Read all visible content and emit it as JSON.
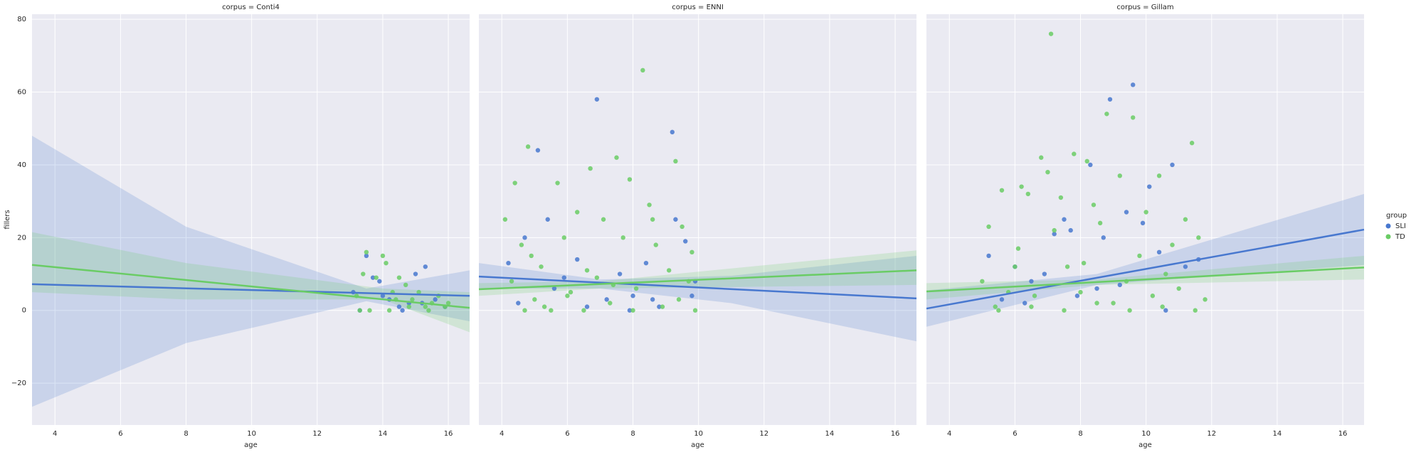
{
  "chart_data": [
    {
      "type": "scatter",
      "title": "corpus = Conti4",
      "xlabel": "age",
      "ylabel": "fillers",
      "xlim": [
        3.3,
        16.65
      ],
      "ylim": [
        -31.5,
        81.4
      ],
      "xticks": [
        4,
        6,
        8,
        10,
        12,
        14,
        16
      ],
      "yticks": [
        {
          "value": -20,
          "label": "−20"
        },
        0,
        20,
        40,
        60,
        80
      ],
      "grid": true,
      "series": [
        {
          "color": "#4878cf",
          "x": [
            13.1,
            13.5,
            13.7,
            13.9,
            14.2,
            14.5,
            14.8,
            15.0,
            15.3,
            15.6,
            13.3,
            14.0,
            14.6,
            15.2,
            15.9
          ],
          "y": [
            5,
            15,
            9,
            8,
            3,
            1,
            2,
            10,
            12,
            3,
            0,
            4,
            0,
            2,
            1
          ],
          "fit": {
            "x": [
              3.3,
              16.65
            ],
            "y": [
              7.2,
              4.0
            ]
          },
          "ci": {
            "x": [
              3.3,
              8,
              13.5,
              16.65
            ],
            "lower": [
              -26.5,
              -9,
              2.5,
              -3
            ],
            "upper": [
              48,
              23,
              6,
              11
            ]
          }
        },
        {
          "color": "#6acc65",
          "x": [
            13.2,
            13.4,
            13.5,
            13.8,
            14.0,
            14.1,
            14.3,
            14.5,
            14.7,
            14.9,
            15.1,
            15.3,
            15.5,
            15.7,
            15.9,
            13.6,
            14.2,
            14.8,
            15.4,
            16.0,
            13.3,
            14.4
          ],
          "y": [
            4,
            10,
            16,
            9,
            15,
            13,
            5,
            9,
            7,
            3,
            5,
            1,
            2,
            4,
            1,
            0,
            0,
            1,
            0,
            2,
            0,
            3
          ],
          "fit": {
            "x": [
              3.3,
              16.65
            ],
            "y": [
              12.5,
              0.7
            ]
          },
          "ci": {
            "x": [
              3.3,
              8,
              14,
              16.65
            ],
            "lower": [
              5,
              3,
              3,
              -6
            ],
            "upper": [
              21.5,
              13,
              6,
              5
            ]
          }
        }
      ]
    },
    {
      "type": "scatter",
      "title": "corpus = ENNI",
      "xlabel": "age",
      "xlim": [
        3.3,
        16.65
      ],
      "ylim": [
        -31.5,
        81.4
      ],
      "xticks": [
        4,
        6,
        8,
        10,
        12,
        14,
        16
      ],
      "yticks": [
        -20,
        0,
        20,
        40,
        60,
        80
      ],
      "grid": true,
      "series": [
        {
          "color": "#4878cf",
          "x": [
            4.2,
            4.7,
            5.1,
            5.4,
            5.9,
            6.3,
            6.6,
            6.9,
            7.2,
            7.6,
            8.0,
            8.4,
            8.8,
            9.2,
            9.3,
            9.6,
            9.8,
            4.5,
            5.6,
            7.9,
            8.6,
            9.9
          ],
          "y": [
            13,
            20,
            44,
            25,
            9,
            14,
            1,
            58,
            3,
            10,
            4,
            13,
            1,
            49,
            25,
            19,
            4,
            2,
            6,
            0,
            3,
            8
          ],
          "fit": {
            "x": [
              3.3,
              16.65
            ],
            "y": [
              9.3,
              3.3
            ]
          },
          "ci": {
            "x": [
              3.3,
              7,
              11,
              16.65
            ],
            "lower": [
              6,
              6,
              2,
              -8.5
            ],
            "upper": [
              13,
              8.5,
              9.5,
              15
            ]
          }
        },
        {
          "color": "#6acc65",
          "x": [
            4.1,
            4.3,
            4.4,
            4.6,
            4.8,
            5.0,
            5.2,
            5.5,
            5.7,
            5.9,
            6.1,
            6.3,
            6.5,
            6.7,
            6.9,
            7.1,
            7.3,
            7.5,
            7.7,
            7.9,
            8.1,
            8.3,
            8.5,
            8.7,
            8.9,
            9.1,
            9.3,
            9.5,
            9.7,
            9.9,
            4.9,
            5.3,
            6.0,
            6.6,
            7.4,
            8.0,
            8.6,
            9.4,
            9.8,
            4.7
          ],
          "y": [
            25,
            8,
            35,
            18,
            45,
            3,
            12,
            0,
            35,
            20,
            5,
            27,
            0,
            39,
            9,
            25,
            2,
            42,
            20,
            36,
            6,
            66,
            29,
            18,
            1,
            11,
            41,
            23,
            8,
            0,
            15,
            1,
            4,
            11,
            7,
            0,
            25,
            3,
            16,
            0
          ],
          "fit": {
            "x": [
              3.3,
              16.65
            ],
            "y": [
              5.8,
              11.0
            ]
          },
          "ci": {
            "x": [
              3.3,
              7,
              16.65
            ],
            "lower": [
              4,
              6,
              7
            ],
            "upper": [
              7.5,
              8,
              16.5
            ]
          }
        }
      ]
    },
    {
      "type": "scatter",
      "title": "corpus = Gillam",
      "xlabel": "age",
      "xlim": [
        3.3,
        16.65
      ],
      "ylim": [
        -31.5,
        81.4
      ],
      "xticks": [
        4,
        6,
        8,
        10,
        12,
        14,
        16
      ],
      "yticks": [
        -20,
        0,
        20,
        40,
        60,
        80
      ],
      "grid": true,
      "legend_title": "group",
      "series": [
        {
          "name": "SLI",
          "color": "#4878cf",
          "x": [
            5.2,
            5.6,
            6.0,
            6.5,
            6.9,
            7.2,
            7.5,
            7.9,
            8.3,
            8.7,
            8.9,
            9.2,
            9.6,
            9.9,
            10.1,
            10.4,
            10.8,
            11.2,
            11.6,
            6.3,
            7.7,
            8.5,
            9.4,
            10.6
          ],
          "y": [
            15,
            3,
            12,
            8,
            10,
            21,
            25,
            4,
            40,
            20,
            58,
            7,
            62,
            24,
            34,
            16,
            40,
            12,
            14,
            2,
            22,
            6,
            27,
            0
          ],
          "fit": {
            "x": [
              3.3,
              16.65
            ],
            "y": [
              0.5,
              22.2
            ]
          },
          "ci": {
            "x": [
              3.3,
              8.5,
              16.65
            ],
            "lower": [
              -4.5,
              7,
              12.5
            ],
            "upper": [
              5.5,
              10,
              32
            ]
          }
        },
        {
          "name": "TD",
          "color": "#6acc65",
          "x": [
            5.0,
            5.2,
            5.4,
            5.6,
            5.8,
            6.0,
            6.2,
            6.4,
            6.6,
            6.8,
            7.0,
            7.1,
            7.2,
            7.4,
            7.6,
            7.8,
            8.0,
            8.2,
            8.4,
            8.6,
            8.8,
            9.0,
            9.2,
            9.4,
            9.6,
            9.8,
            10.0,
            10.2,
            10.4,
            10.6,
            10.8,
            11.0,
            11.2,
            11.4,
            11.6,
            11.8,
            5.5,
            6.5,
            7.5,
            8.5,
            9.5,
            10.5,
            11.5,
            6.1,
            8.1
          ],
          "y": [
            8,
            23,
            1,
            33,
            5,
            12,
            34,
            32,
            4,
            42,
            38,
            76,
            22,
            31,
            12,
            43,
            5,
            41,
            29,
            24,
            54,
            2,
            37,
            8,
            53,
            15,
            27,
            4,
            37,
            10,
            18,
            6,
            25,
            46,
            20,
            3,
            0,
            1,
            0,
            2,
            0,
            1,
            0,
            17,
            13
          ],
          "fit": {
            "x": [
              3.3,
              16.65
            ],
            "y": [
              5.2,
              11.8
            ]
          },
          "ci": {
            "x": [
              3.3,
              8.5,
              16.65
            ],
            "lower": [
              3,
              7,
              8.5
            ],
            "upper": [
              7.5,
              8.5,
              15
            ]
          }
        }
      ]
    }
  ]
}
